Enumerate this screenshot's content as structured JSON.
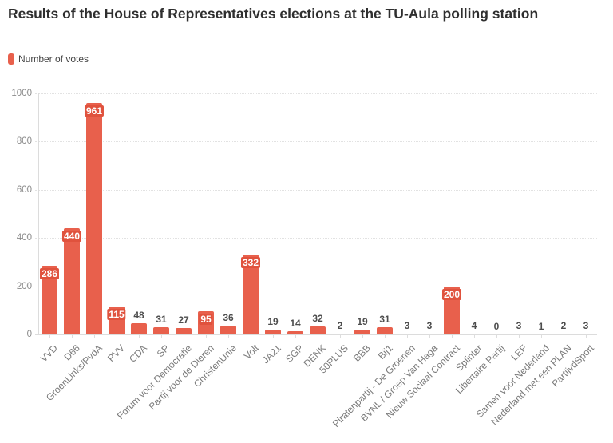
{
  "header": {
    "title": "Results of the House of Representatives elections at the TU-Aula polling station"
  },
  "legend": {
    "items": [
      {
        "label": "Number of votes",
        "color": "#e8604c"
      }
    ]
  },
  "chart_data": {
    "type": "bar",
    "title": "Results of the House of Representatives elections at the TU-Aula polling station",
    "series_name": "Number of votes",
    "categories": [
      "VVD",
      "D66",
      "GroenLinks/PvdA",
      "PVV",
      "CDA",
      "SP",
      "Forum voor Democratie",
      "Partij voor de Dieren",
      "ChristenUnie",
      "Volt",
      "JA21",
      "SGP",
      "DENK",
      "50PLUS",
      "BBB",
      "Bij1",
      "Piratenpartij - De Groenen",
      "BVNL / Groep Van Haga",
      "Nieuw Sociaal Contract",
      "Splinter",
      "Libertaire Partij",
      "LEF",
      "Samen voor Nederland",
      "Nederland met een PLAN",
      "PartijvdSport"
    ],
    "values": [
      286,
      440,
      961,
      115,
      48,
      31,
      27,
      95,
      36,
      332,
      19,
      14,
      32,
      2,
      19,
      31,
      3,
      3,
      200,
      4,
      0,
      3,
      1,
      2,
      3
    ],
    "xlabel": "",
    "ylabel": "",
    "ylim": [
      0,
      1000
    ],
    "yticks": [
      0,
      200,
      400,
      600,
      800,
      1000
    ],
    "grid": true,
    "legend_position": "top-left",
    "bar_color": "#e8604c",
    "value_labels": true
  },
  "colors": {
    "bar": "#e8604c",
    "bar_label_bg": "#e0523d",
    "title_text": "#2f2f2f",
    "axis_text": "#8a8a8a",
    "category_text": "#7a7a7a",
    "value_label_outside": "#4d4d4d",
    "gridline": "#e2e2e2",
    "axis_line": "#dcdcdc",
    "background": "#ffffff"
  }
}
